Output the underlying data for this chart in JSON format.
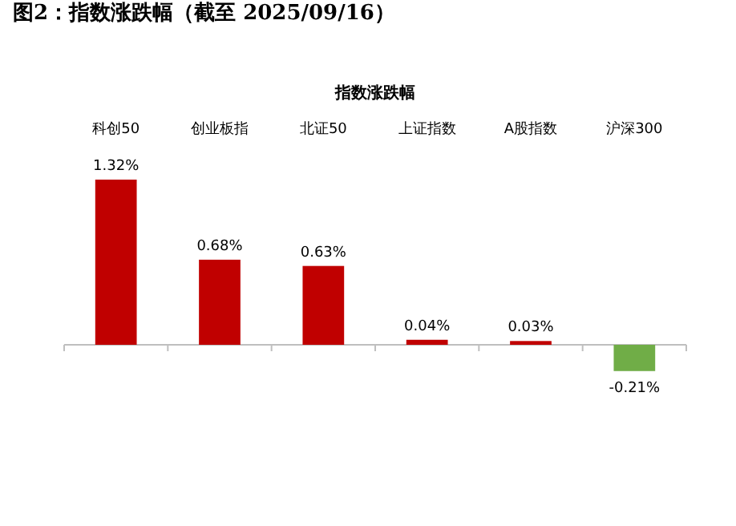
{
  "chart_data": {
    "type": "bar",
    "title": "图2：指数涨跌幅（截至 2025/09/16）",
    "subtitle": "指数涨跌幅",
    "categories": [
      "科创50",
      "创业板指",
      "北证50",
      "上证指数",
      "A股指数",
      "沪深300"
    ],
    "values": [
      1.32,
      0.68,
      0.63,
      0.04,
      0.03,
      -0.21
    ],
    "colors": [
      "#c00000",
      "#c00000",
      "#c00000",
      "#c00000",
      "#c00000",
      "#70ad47"
    ],
    "value_labels": [
      "1.32%",
      "0.68%",
      "0.63%",
      "0.04%",
      "0.03%",
      "-0.21%"
    ]
  }
}
